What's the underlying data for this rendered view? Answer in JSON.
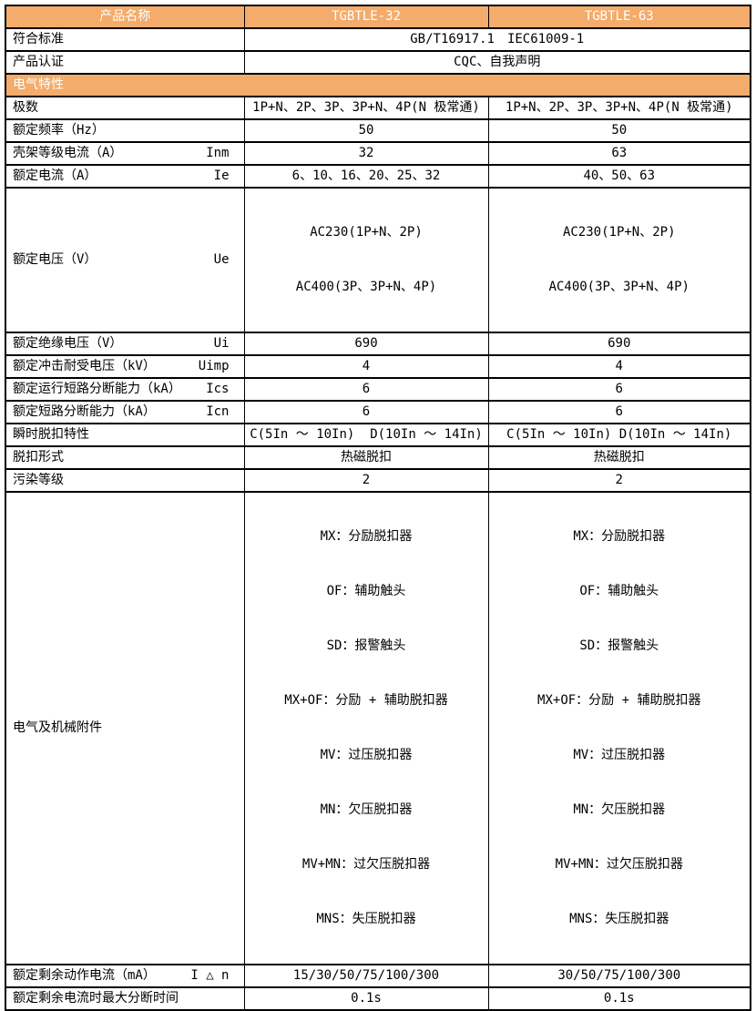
{
  "colors": {
    "header_bg": "#F3AC6B",
    "header_text": "#FFFFFF",
    "border": "#000000",
    "body_bg": "#FFFFFF",
    "body_text": "#000000"
  },
  "header": {
    "product_label": "产品名称",
    "model_a": "TGBTLE-32",
    "model_b": "TGBTLE-63"
  },
  "meta": {
    "standard": {
      "label": "符合标准",
      "value": "GB/T16917.1　IEC61009-1"
    },
    "certification": {
      "label": "产品认证",
      "value": "CQC、自我声明"
    }
  },
  "section_title": "电气特性",
  "specs": [
    {
      "label": "极数",
      "symbol": "",
      "a": "1P+N、2P、3P、3P+N、4P(N 极常通)",
      "b": "1P+N、2P、3P、3P+N、4P(N 极常通)"
    },
    {
      "label": "额定频率（Hz）",
      "symbol": "",
      "a": "50",
      "b": "50"
    },
    {
      "label": "壳架等级电流（A）",
      "symbol": "Inm",
      "a": "32",
      "b": "63"
    },
    {
      "label": "额定电流（A）",
      "symbol": "Ie",
      "a": "6、10、16、20、25、32",
      "b": "40、50、63"
    },
    {
      "label": "额定电压（V）",
      "symbol": "Ue",
      "a_lines": [
        "AC230(1P+N、2P)",
        "AC400(3P、3P+N、4P)"
      ],
      "b_lines": [
        "AC230(1P+N、2P)",
        "AC400(3P、3P+N、4P)"
      ]
    },
    {
      "label": "额定绝缘电压（V）",
      "symbol": "Ui",
      "a": "690",
      "b": "690"
    },
    {
      "label": "额定冲击耐受电压（kV）",
      "symbol": "Uimp",
      "a": "4",
      "b": "4"
    },
    {
      "label": "额定运行短路分断能力（kA）",
      "symbol": "Ics",
      "a": "6",
      "b": "6"
    },
    {
      "label": "额定短路分断能力（kA）",
      "symbol": "Icn",
      "a": "6",
      "b": "6"
    },
    {
      "label": "瞬时脱扣特性",
      "symbol": "",
      "a": "C(5In ～ 10In)  D(10In ～ 14In)",
      "b": "C(5In ～ 10In) D(10In ～ 14In)"
    },
    {
      "label": "脱扣形式",
      "symbol": "",
      "a": "热磁脱扣",
      "b": "热磁脱扣"
    },
    {
      "label": "污染等级",
      "symbol": "",
      "a": "2",
      "b": "2"
    },
    {
      "label": "电气及机械附件",
      "symbol": "",
      "lines": [
        "MX：分励脱扣器",
        "OF：辅助触头",
        "SD：报警触头",
        "MX+OF：分励 + 辅助脱扣器",
        "MV：过压脱扣器",
        "MN：欠压脱扣器",
        "MV+MN：过欠压脱扣器",
        "MNS：失压脱扣器"
      ]
    },
    {
      "label": "额定剩余动作电流（mA）",
      "symbol": "I △ n",
      "a": "15/30/50/75/100/300",
      "b": "30/50/75/100/300"
    },
    {
      "label": "额定剩余电流时最大分断时间",
      "symbol": "",
      "a": "0.1s",
      "b": "0.1s"
    }
  ]
}
